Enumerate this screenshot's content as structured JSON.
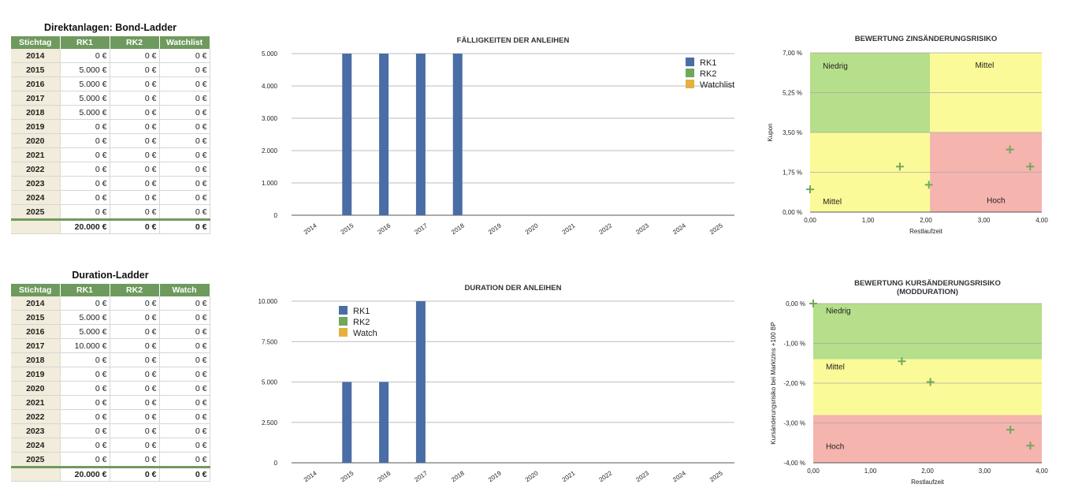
{
  "table1": {
    "title": "Direktanlagen: Bond-Ladder",
    "headers": [
      "Stichtag",
      "RK1",
      "RK2",
      "Watchlist"
    ],
    "rows": [
      [
        "2014",
        "0 €",
        "0 €",
        "0 €"
      ],
      [
        "2015",
        "5.000 €",
        "0 €",
        "0 €"
      ],
      [
        "2016",
        "5.000 €",
        "0 €",
        "0 €"
      ],
      [
        "2017",
        "5.000 €",
        "0 €",
        "0 €"
      ],
      [
        "2018",
        "5.000 €",
        "0 €",
        "0 €"
      ],
      [
        "2019",
        "0 €",
        "0 €",
        "0 €"
      ],
      [
        "2020",
        "0 €",
        "0 €",
        "0 €"
      ],
      [
        "2021",
        "0 €",
        "0 €",
        "0 €"
      ],
      [
        "2022",
        "0 €",
        "0 €",
        "0 €"
      ],
      [
        "2023",
        "0 €",
        "0 €",
        "0 €"
      ],
      [
        "2024",
        "0 €",
        "0 €",
        "0 €"
      ],
      [
        "2025",
        "0 €",
        "0 €",
        "0 €"
      ]
    ],
    "total": [
      "",
      "20.000 €",
      "0 €",
      "0 €"
    ]
  },
  "table2": {
    "title": "Duration-Ladder",
    "headers": [
      "Stichtag",
      "RK1",
      "RK2",
      "Watch"
    ],
    "rows": [
      [
        "2014",
        "0 €",
        "0 €",
        "0 €"
      ],
      [
        "2015",
        "5.000 €",
        "0 €",
        "0 €"
      ],
      [
        "2016",
        "5.000 €",
        "0 €",
        "0 €"
      ],
      [
        "2017",
        "10.000 €",
        "0 €",
        "0 €"
      ],
      [
        "2018",
        "0 €",
        "0 €",
        "0 €"
      ],
      [
        "2019",
        "0 €",
        "0 €",
        "0 €"
      ],
      [
        "2020",
        "0 €",
        "0 €",
        "0 €"
      ],
      [
        "2021",
        "0 €",
        "0 €",
        "0 €"
      ],
      [
        "2022",
        "0 €",
        "0 €",
        "0 €"
      ],
      [
        "2023",
        "0 €",
        "0 €",
        "0 €"
      ],
      [
        "2024",
        "0 €",
        "0 €",
        "0 €"
      ],
      [
        "2025",
        "0 €",
        "0 €",
        "0 €"
      ]
    ],
    "total": [
      "",
      "20.000 €",
      "0 €",
      "0 €"
    ]
  },
  "colors": {
    "rk1": "#4a6da5",
    "rk2": "#6fa85b",
    "watch": "#e4b13f",
    "green": "#b5df8a",
    "yellow": "#fbfa98",
    "red": "#f5b4ae",
    "marker": "#6fa85b"
  },
  "chart_data": [
    {
      "type": "bar",
      "title": "FÄLLIGKEITEN DER ANLEIHEN",
      "categories": [
        "2014",
        "2015",
        "2016",
        "2017",
        "2018",
        "2019",
        "2020",
        "2021",
        "2022",
        "2023",
        "2024",
        "2025"
      ],
      "series": [
        {
          "name": "RK1",
          "values": [
            0,
            5000,
            5000,
            5000,
            5000,
            0,
            0,
            0,
            0,
            0,
            0,
            0
          ]
        },
        {
          "name": "RK2",
          "values": [
            0,
            0,
            0,
            0,
            0,
            0,
            0,
            0,
            0,
            0,
            0,
            0
          ]
        },
        {
          "name": "Watchlist",
          "values": [
            0,
            0,
            0,
            0,
            0,
            0,
            0,
            0,
            0,
            0,
            0,
            0
          ]
        }
      ],
      "yticks": [
        "0",
        "1.000",
        "2.000",
        "3.000",
        "4.000",
        "5.000"
      ],
      "ylim": [
        0,
        5000
      ],
      "legend": "top-right"
    },
    {
      "type": "bar",
      "title": "DURATION DER ANLEIHEN",
      "categories": [
        "2014",
        "2015",
        "2016",
        "2017",
        "2018",
        "2019",
        "2020",
        "2021",
        "2022",
        "2023",
        "2024",
        "2025"
      ],
      "series": [
        {
          "name": "RK1",
          "values": [
            0,
            5000,
            5000,
            10000,
            0,
            0,
            0,
            0,
            0,
            0,
            0,
            0
          ]
        },
        {
          "name": "RK2",
          "values": [
            0,
            0,
            0,
            0,
            0,
            0,
            0,
            0,
            0,
            0,
            0,
            0
          ]
        },
        {
          "name": "Watch",
          "values": [
            0,
            0,
            0,
            0,
            0,
            0,
            0,
            0,
            0,
            0,
            0,
            0
          ]
        }
      ],
      "yticks": [
        "0",
        "2.500",
        "5.000",
        "7.500",
        "10.000"
      ],
      "ylim": [
        0,
        10000
      ],
      "legend": "top-left"
    },
    {
      "type": "scatter",
      "title": "BEWERTUNG ZINSÄNDERUNGSRISIKO",
      "xlabel": "Restlaufzeit",
      "ylabel": "Kupon",
      "xlim": [
        0,
        4
      ],
      "ylim": [
        0,
        7
      ],
      "xticks": [
        "0,00",
        "1,00",
        "2,00",
        "3,00",
        "4,00"
      ],
      "yticks": [
        "0,00 %",
        "1,75 %",
        "3,50 %",
        "5,25 %",
        "7,00 %"
      ],
      "zone_labels": [
        "Niedrig",
        "Mittel",
        "Mittel",
        "Hoch"
      ],
      "points": [
        {
          "x": 0.0,
          "y": 1.0
        },
        {
          "x": 1.55,
          "y": 2.0
        },
        {
          "x": 2.05,
          "y": 1.2
        },
        {
          "x": 3.45,
          "y": 2.75
        },
        {
          "x": 3.8,
          "y": 2.0
        }
      ]
    },
    {
      "type": "scatter",
      "title": "BEWERTUNG KURSÄNDERUNGSRISIKO",
      "subtitle": "(MODDURATION)",
      "xlabel": "Restlaufzeit",
      "ylabel": "Kursänderungsrisiko bei Marktzins +100 BP",
      "xlim": [
        0,
        4
      ],
      "ylim": [
        -4,
        0
      ],
      "xticks": [
        "0,00",
        "1,00",
        "2,00",
        "3,00",
        "4,00"
      ],
      "yticks": [
        "-4,00 %",
        "-3,00 %",
        "-2,00 %",
        "-1,00 %",
        "0,00 %"
      ],
      "zone_labels": [
        "Niedrig",
        "Mittel",
        "Hoch"
      ],
      "points": [
        {
          "x": 0.0,
          "y": 0.0
        },
        {
          "x": 1.55,
          "y": -1.45
        },
        {
          "x": 2.05,
          "y": -1.97
        },
        {
          "x": 3.45,
          "y": -3.17
        },
        {
          "x": 3.8,
          "y": -3.57
        }
      ]
    }
  ]
}
